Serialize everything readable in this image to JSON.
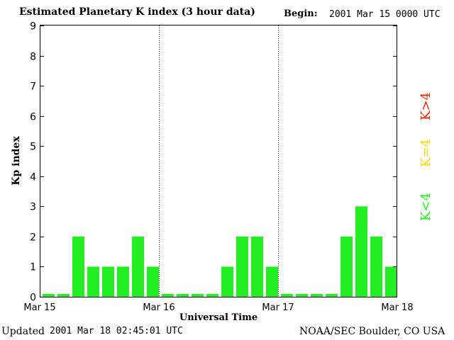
{
  "header": {
    "title": "Estimated Planetary K index (3 hour data)",
    "begin_label": "Begin:",
    "begin_value": "2001 Mar 15 0000 UTC"
  },
  "footer": {
    "updated_label": "Updated",
    "updated_value": "2001 Mar 18 02:45:01 UTC",
    "source": "NOAA/SEC Boulder, CO USA"
  },
  "legend": {
    "high": {
      "label": "K>4",
      "color": "#ff2000"
    },
    "equal": {
      "label": "K=4",
      "color": "#ffd700"
    },
    "low": {
      "label": "K<4",
      "color": "#22ee22"
    }
  },
  "chart_data": {
    "type": "bar",
    "title": "Estimated Planetary K index (3 hour data)",
    "xlabel": "Universal Time",
    "ylabel": "Kp index",
    "ylim": [
      0,
      9
    ],
    "yticks": [
      "0",
      "1",
      "2",
      "3",
      "4",
      "5",
      "6",
      "7",
      "8",
      "9"
    ],
    "xticks": [
      "Mar 15",
      "Mar 16",
      "Mar 17",
      "Mar 18"
    ],
    "bar_color": "#22ee22",
    "day_separators": "dotted",
    "values": [
      0,
      0,
      2,
      1,
      1,
      1,
      2,
      1,
      0,
      0,
      0,
      0,
      1,
      2,
      2,
      1,
      0,
      0,
      0,
      0,
      2,
      3,
      2,
      1
    ]
  }
}
